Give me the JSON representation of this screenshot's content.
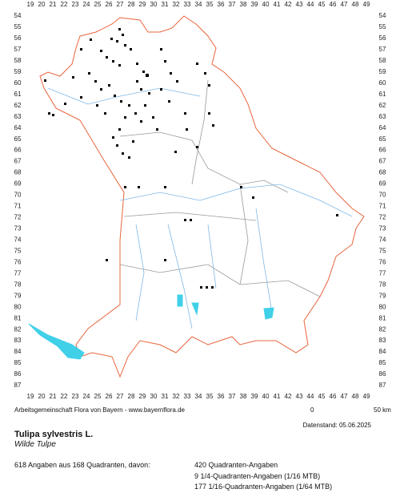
{
  "map": {
    "column_labels": [
      19,
      20,
      21,
      22,
      23,
      24,
      25,
      26,
      27,
      28,
      29,
      30,
      31,
      32,
      33,
      34,
      35,
      36,
      37,
      38,
      39,
      40,
      41,
      42,
      43,
      44,
      45,
      46,
      47,
      48,
      49
    ],
    "row_labels": [
      54,
      55,
      56,
      57,
      58,
      59,
      60,
      61,
      62,
      63,
      64,
      65,
      66,
      67,
      68,
      69,
      70,
      71,
      72,
      73,
      74,
      75,
      76,
      77,
      78,
      79,
      80,
      81,
      82,
      83,
      84,
      85,
      86,
      87
    ],
    "credit": "Arbeitsgemeinschaft Flora von Bayern - www.bayernflora.de",
    "scale": {
      "start": "0",
      "end": "50 km"
    },
    "date": "Datenstand: 05.06.2025"
  },
  "species": {
    "name": "Tulipa sylvestris L.",
    "common_name": "Wilde Tulpe"
  },
  "summary": {
    "total": "618 Angaben aus 168 Quadranten, davon:",
    "breakdown": [
      "420 Quadranten-Angaben",
      "9 1/4-Quadranten-Angaben (1/16 MTB)",
      "177 1/16-Quadranten-Angaben (1/64 MTB)"
    ]
  }
}
